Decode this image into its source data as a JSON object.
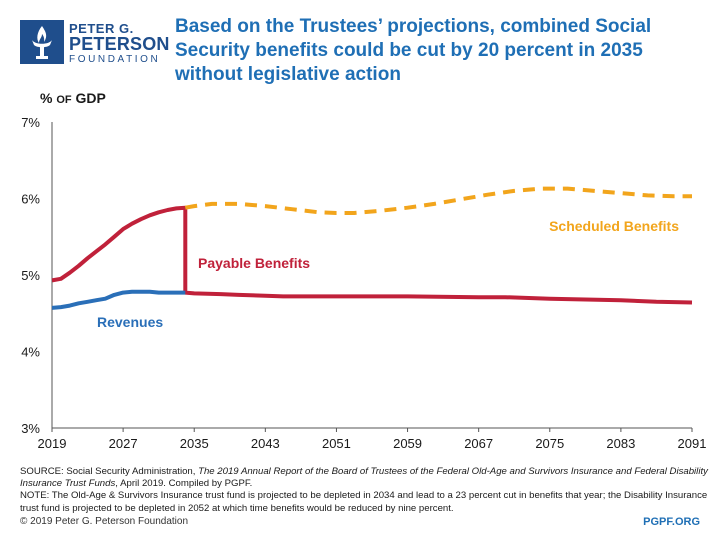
{
  "logo": {
    "line1": "PETER G.",
    "line2": "PETERSON",
    "line3": "FOUNDATION"
  },
  "colors": {
    "navy": "#1f4e8c",
    "title_blue": "#1f6fb5",
    "payable": "#c0213a",
    "revenue": "#2a6fb8",
    "scheduled": "#f2a51c"
  },
  "chart_data": {
    "type": "line",
    "title": "Based on the Trustees’ projections, combined Social Security benefits could be cut by 20 percent in 2035 without legislative action",
    "ylabel_prefix": "% ",
    "ylabel_small": "OF",
    "ylabel_suffix": " GDP",
    "xlabel": "",
    "xlim": [
      2019,
      2091
    ],
    "ylim": [
      3,
      7
    ],
    "yticks": [
      3,
      4,
      5,
      6,
      7
    ],
    "ytick_labels": [
      "3%",
      "4%",
      "5%",
      "6%",
      "7%"
    ],
    "xticks": [
      2019,
      2027,
      2035,
      2043,
      2051,
      2059,
      2067,
      2075,
      2083,
      2091
    ],
    "xtick_labels": [
      "2019",
      "2027",
      "2035",
      "2043",
      "2051",
      "2059",
      "2067",
      "2075",
      "2083",
      "2091"
    ],
    "series": [
      {
        "name": "Payable Benefits",
        "style": "solid",
        "x": [
          2019,
          2020,
          2021,
          2022,
          2023,
          2024,
          2025,
          2026,
          2027,
          2028,
          2029,
          2030,
          2031,
          2032,
          2033,
          2034,
          2034,
          2035,
          2038,
          2040,
          2043,
          2045,
          2051,
          2059,
          2067,
          2070,
          2075,
          2083,
          2087,
          2091
        ],
        "values": [
          4.93,
          4.95,
          5.03,
          5.12,
          5.22,
          5.31,
          5.4,
          5.5,
          5.6,
          5.67,
          5.73,
          5.78,
          5.82,
          5.85,
          5.87,
          5.88,
          4.77,
          4.76,
          4.75,
          4.74,
          4.73,
          4.72,
          4.72,
          4.72,
          4.71,
          4.71,
          4.69,
          4.67,
          4.65,
          4.64
        ]
      },
      {
        "name": "Scheduled Benefits",
        "style": "dashed",
        "x": [
          2034,
          2035,
          2037,
          2040,
          2043,
          2046,
          2049,
          2051,
          2053,
          2056,
          2059,
          2062,
          2065,
          2068,
          2071,
          2074,
          2077,
          2080,
          2083,
          2086,
          2089,
          2091
        ],
        "values": [
          5.88,
          5.9,
          5.93,
          5.93,
          5.9,
          5.86,
          5.82,
          5.81,
          5.81,
          5.84,
          5.88,
          5.93,
          5.99,
          6.05,
          6.1,
          6.13,
          6.13,
          6.1,
          6.07,
          6.04,
          6.03,
          6.03
        ]
      },
      {
        "name": "Revenues",
        "style": "solid",
        "x": [
          2019,
          2020,
          2021,
          2022,
          2023,
          2024,
          2025,
          2026,
          2027,
          2028,
          2029,
          2030,
          2031,
          2032,
          2033,
          2034
        ],
        "values": [
          4.57,
          4.58,
          4.6,
          4.63,
          4.65,
          4.67,
          4.69,
          4.74,
          4.77,
          4.78,
          4.78,
          4.78,
          4.77,
          4.77,
          4.77,
          4.77
        ]
      }
    ],
    "annotations": {
      "payable": "Payable Benefits",
      "scheduled": "Scheduled Benefits",
      "revenues": "Revenues"
    }
  },
  "footnote": {
    "source_prefix": "SOURCE: Social Security Administration, ",
    "source_title": "The 2019 Annual Report of the Board of Trustees of the Federal Old-Age and Survivors Insurance and Federal Disability Insurance Trust Funds",
    "source_suffix": ", April 2019. Compiled by PGPF.",
    "note": "NOTE: The Old-Age & Survivors Insurance trust fund is projected to be depleted in 2034 and lead to a 23 percent cut in benefits that year; the Disability Insurance trust fund is projected to be depleted in 2052 at which time benefits would be reduced by nine percent."
  },
  "copyright": "© 2019 Peter G. Peterson Foundation",
  "site": "PGPF.ORG"
}
